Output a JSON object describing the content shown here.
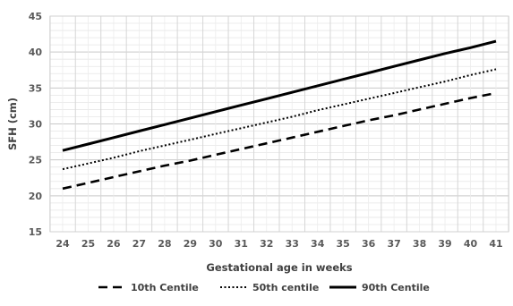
{
  "chart_data": {
    "type": "line",
    "title": "",
    "xlabel": "Gestational age in weeks",
    "ylabel": "SFH (cm)",
    "x": [
      24,
      25,
      26,
      27,
      28,
      29,
      30,
      31,
      32,
      33,
      34,
      35,
      36,
      37,
      38,
      39,
      40,
      41
    ],
    "xlim": [
      24,
      41
    ],
    "ylim": [
      15,
      45
    ],
    "y_ticks": [
      15,
      20,
      25,
      30,
      35,
      40,
      45
    ],
    "grid": "major and minor",
    "legend_position": "bottom",
    "series": [
      {
        "name": "10th Centile",
        "style": "dashed",
        "color": "#000000",
        "values": [
          21.0,
          21.8,
          22.6,
          23.4,
          24.2,
          24.9,
          25.7,
          26.5,
          27.3,
          28.1,
          28.9,
          29.7,
          30.5,
          31.2,
          32.0,
          32.8,
          33.6,
          34.3
        ]
      },
      {
        "name": "50th centile",
        "style": "dotted",
        "color": "#000000",
        "values": [
          23.7,
          24.5,
          25.3,
          26.2,
          27.0,
          27.8,
          28.6,
          29.4,
          30.2,
          31.0,
          31.9,
          32.7,
          33.5,
          34.3,
          35.1,
          35.9,
          36.8,
          37.6
        ]
      },
      {
        "name": "90th Centile",
        "style": "solid",
        "color": "#000000",
        "values": [
          26.3,
          27.2,
          28.1,
          29.0,
          29.9,
          30.8,
          31.7,
          32.6,
          33.5,
          34.4,
          35.3,
          36.2,
          37.1,
          38.0,
          38.9,
          39.8,
          40.6,
          41.5
        ]
      }
    ]
  }
}
